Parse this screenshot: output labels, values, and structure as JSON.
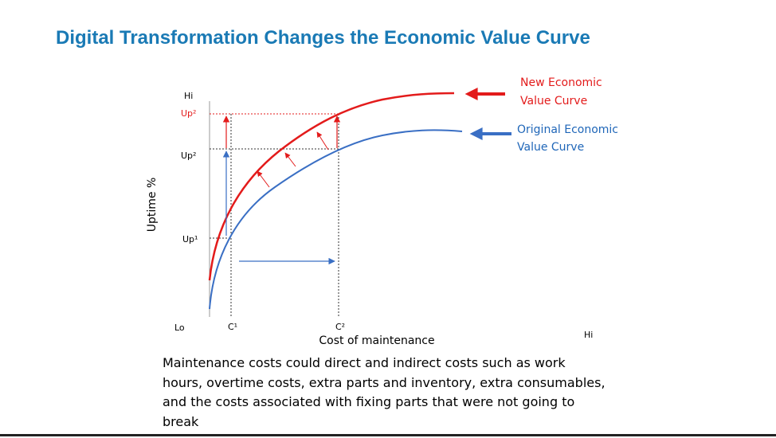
{
  "slide": {
    "title": "Digital Transformation Changes the Economic Value Curve",
    "description": "Maintenance costs could direct and indirect costs such as work hours, overtime costs, extra parts and inventory, extra consumables, and the costs associated with fixing parts that were not going to break"
  },
  "diagram": {
    "y_axis_title": "Uptime %",
    "x_axis_title": "Cost of maintenance",
    "y_hi": "Hi",
    "x_lo": "Lo",
    "x_hi": "Hi",
    "y_labels": {
      "up2_new": "Up²",
      "up2_orig": "Up²",
      "up1": "Up¹"
    },
    "x_labels": {
      "c1": "C¹",
      "c2": "C²"
    },
    "legend": {
      "new_line1": "New Economic",
      "new_line2": "Value Curve",
      "orig_line1": "Original Economic",
      "orig_line2": "Value Curve"
    },
    "colors": {
      "title": "#1a7ab5",
      "new_curve": "#e31b1b",
      "original_curve": "#3a6fc4",
      "axis": "#000000"
    }
  }
}
